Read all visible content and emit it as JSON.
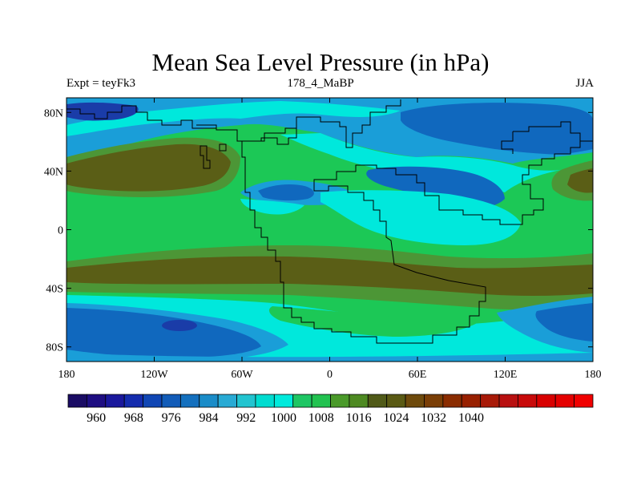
{
  "title": "Mean Sea Level Pressure (in hPa)",
  "subtitle_left": "Expt = teyFk3",
  "subtitle_center": "178_4_MaBP",
  "subtitle_right": "JJA",
  "axes": {
    "lat_labels": [
      "80N",
      "40N",
      "0",
      "40S",
      "80S"
    ],
    "lat_values": [
      80,
      40,
      0,
      -40,
      -80
    ],
    "lon_labels": [
      "180",
      "120W",
      "60W",
      "0",
      "60E",
      "120E",
      "180"
    ],
    "lon_values": [
      -180,
      -120,
      -60,
      0,
      60,
      120,
      180
    ],
    "lat_range": [
      -90,
      90
    ],
    "lon_range": [
      -180,
      180
    ]
  },
  "colorbar": {
    "labels": [
      "960",
      "968",
      "976",
      "984",
      "992",
      "1000",
      "1008",
      "1016",
      "1024",
      "1032",
      "1040"
    ],
    "colors": [
      "#1a0c64",
      "#1e0e82",
      "#1a189c",
      "#142cae",
      "#1046b4",
      "#125cb8",
      "#1470be",
      "#1a8cc8",
      "#28aad4",
      "#22c4d0",
      "#00dcd0",
      "#00eadc",
      "#1ec664",
      "#22c250",
      "#4a9a2a",
      "#4e8a22",
      "#505a18",
      "#5a5a14",
      "#6e4a0c",
      "#7a3e06",
      "#8a2c00",
      "#982000",
      "#a81a08",
      "#b81010",
      "#c80a0a",
      "#d80000",
      "#e40000",
      "#f00000"
    ]
  },
  "map_colors": {
    "green_bg": "#1cc856",
    "brown": "#5a5e16",
    "olive": "#4c9636",
    "cyan": "#00e8dc",
    "teal": "#1a9ed8",
    "blue": "#1068be",
    "dark_blue": "#1a3ca8",
    "navy": "#1a1a8c"
  }
}
